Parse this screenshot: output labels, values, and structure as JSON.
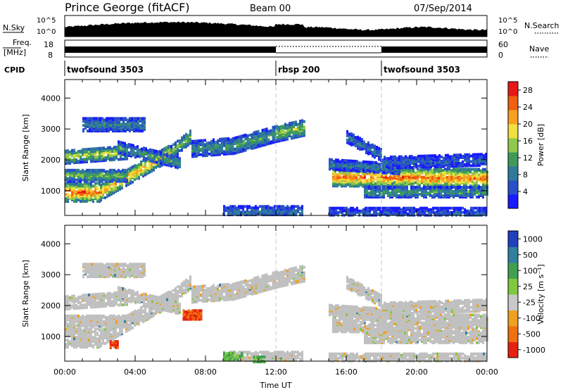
{
  "header": {
    "station": "Prince George (fitACF)",
    "beam": "Beam 00",
    "date": "07/Sep/2014"
  },
  "summary": {
    "nsky_label": "N.Sky",
    "nsky_ticks": [
      "10^5",
      "10^0"
    ],
    "nsearch_label": "N.Search",
    "freq_label_line1": "Freq.",
    "freq_label_line2": "[MHz]",
    "freq_ticks": [
      "18",
      "8"
    ],
    "nave_label": "Nave",
    "nave_ticks": [
      "60",
      "0"
    ],
    "cpid_label": "CPID"
  },
  "cpid_segments": [
    {
      "name": "twofsound 3503",
      "start_hour": 0,
      "end_hour": 12
    },
    {
      "name": "rbsp 200",
      "start_hour": 12,
      "end_hour": 18
    },
    {
      "name": "twofsound 3503",
      "start_hour": 18,
      "end_hour": 24
    }
  ],
  "chart_data": [
    {
      "type": "heatmap",
      "quantity": "power",
      "xlabel": "",
      "ylabel": "Slant Range [km]",
      "xlim": [
        0,
        24
      ],
      "ylim": [
        200,
        4600
      ],
      "yticks": [
        1000,
        2000,
        3000,
        4000
      ],
      "colorbar": {
        "label": "Power [dB]",
        "ticks": [
          4,
          8,
          12,
          16,
          20,
          24,
          28
        ],
        "range": [
          0,
          30
        ],
        "colors": [
          "#1a1aff",
          "#2850c8",
          "#2f7a9a",
          "#3f9a5a",
          "#8fc84a",
          "#f0e040",
          "#f8a020",
          "#f06010",
          "#e81818"
        ]
      },
      "echo_bands": [
        {
          "t0": 0.0,
          "t1": 2.0,
          "r0": 1000,
          "r1": 1000,
          "w": 300,
          "p": 26
        },
        {
          "t0": 2.0,
          "t1": 6.0,
          "r0": 1000,
          "r1": 2300,
          "w": 260,
          "p": 22
        },
        {
          "t0": 6.0,
          "t1": 7.2,
          "r0": 2300,
          "r1": 2850,
          "w": 220,
          "p": 14
        },
        {
          "t0": 0.0,
          "t1": 3.5,
          "r0": 1550,
          "r1": 1550,
          "w": 200,
          "p": 14
        },
        {
          "t0": 0.0,
          "t1": 3.5,
          "r0": 2150,
          "r1": 2300,
          "w": 220,
          "p": 17
        },
        {
          "t0": 3.0,
          "t1": 6.5,
          "r0": 2450,
          "r1": 1950,
          "w": 180,
          "p": 12
        },
        {
          "t0": 1.0,
          "t1": 4.5,
          "r0": 3200,
          "r1": 3200,
          "w": 220,
          "p": 9
        },
        {
          "t0": 7.2,
          "t1": 9.5,
          "r0": 2400,
          "r1": 2500,
          "w": 250,
          "p": 11
        },
        {
          "t0": 9.5,
          "t1": 12.0,
          "r0": 2500,
          "r1": 2900,
          "w": 260,
          "p": 12
        },
        {
          "t0": 12.0,
          "t1": 13.6,
          "r0": 2900,
          "r1": 3100,
          "w": 260,
          "p": 16
        },
        {
          "t0": 9.0,
          "t1": 13.5,
          "r0": 350,
          "r1": 350,
          "w": 220,
          "p": 8
        },
        {
          "t0": 15.2,
          "t1": 24.0,
          "r0": 1500,
          "r1": 1450,
          "w": 300,
          "p": 25
        },
        {
          "t0": 15.0,
          "t1": 19.0,
          "r0": 1900,
          "r1": 1750,
          "w": 160,
          "p": 9
        },
        {
          "t0": 17.0,
          "t1": 24.0,
          "r0": 1000,
          "r1": 1000,
          "w": 160,
          "p": 12
        },
        {
          "t0": 18.0,
          "t1": 24.0,
          "r0": 1950,
          "r1": 2050,
          "w": 180,
          "p": 7
        },
        {
          "t0": 16.0,
          "t1": 18.0,
          "r0": 2800,
          "r1": 2200,
          "w": 200,
          "p": 8
        },
        {
          "t0": 15.0,
          "t1": 24.0,
          "r0": 300,
          "r1": 300,
          "w": 180,
          "p": 6
        }
      ]
    },
    {
      "type": "heatmap",
      "quantity": "velocity",
      "xlabel": "Time UT",
      "ylabel": "Slant Range [km]",
      "xlim": [
        0,
        24
      ],
      "ylim": [
        200,
        4600
      ],
      "yticks": [
        1000,
        2000,
        3000,
        4000
      ],
      "xticks": [
        "00:00",
        "04:00",
        "08:00",
        "12:00",
        "16:00",
        "20:00",
        "00:00"
      ],
      "colorbar": {
        "label": "Velocity [m s⁻¹]",
        "ticks": [
          1000,
          500,
          100,
          25,
          -25,
          -100,
          -500,
          -1000
        ],
        "colors": [
          "#2040c0",
          "#3080a0",
          "#40a050",
          "#80c840",
          "#c8c8c8",
          "#f0a020",
          "#f07010",
          "#e82010"
        ]
      },
      "velocity_blobs": [
        {
          "t": 7.2,
          "r": 1750,
          "dt": 0.5,
          "dr": 150,
          "v": -500
        },
        {
          "t": 2.8,
          "r": 780,
          "dt": 0.25,
          "dr": 100,
          "v": -500
        },
        {
          "t": 9.5,
          "r": 400,
          "dt": 0.5,
          "dr": 100,
          "v": 100
        },
        {
          "t": 11.0,
          "r": 300,
          "dt": 0.3,
          "dr": 80,
          "v": 100
        }
      ]
    }
  ],
  "colors": {
    "separator": "#c8c8c8",
    "ground_scatter": "#c0c0c0"
  }
}
